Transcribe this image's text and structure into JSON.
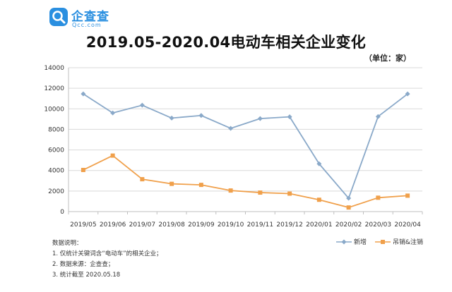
{
  "brand": {
    "name": "企查查",
    "domain": "Qcc.com",
    "color": "#2a8fe0"
  },
  "unit_label": "（单位：家）",
  "notes": {
    "heading": "数据说明：",
    "lines": [
      "1. 仅统计关键词含“电动车”的相关企业；",
      "2. 数据来源：企查查；",
      "3. 统计截至 2020.05.18"
    ]
  },
  "chart_data": {
    "type": "line",
    "title": "2019.05-2020.04电动车相关企业变化",
    "categories": [
      "2019/05",
      "2019/06",
      "2019/07",
      "2019/08",
      "2019/09",
      "2019/10",
      "2019/11",
      "2019/12",
      "2020/01",
      "2020/02",
      "2020/03",
      "2020/04"
    ],
    "series": [
      {
        "name": "新增",
        "color": "#8aa9c9",
        "marker": "diamond",
        "values": [
          11450,
          9600,
          10350,
          9100,
          9350,
          8100,
          9050,
          9220,
          4650,
          1300,
          9250,
          11450
        ]
      },
      {
        "name": "吊销&注销",
        "color": "#f0a04b",
        "marker": "square",
        "values": [
          4050,
          5450,
          3150,
          2700,
          2600,
          2050,
          1850,
          1750,
          1150,
          400,
          1350,
          1550
        ]
      }
    ],
    "ylim": [
      0,
      14000
    ],
    "yticks": [
      0,
      2000,
      4000,
      6000,
      8000,
      10000,
      12000,
      14000
    ],
    "grid": true,
    "legend_position": "bottom-right"
  }
}
